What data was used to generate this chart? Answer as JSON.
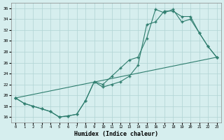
{
  "xlabel": "Humidex (Indice chaleur)",
  "ylabel": "",
  "background_color": "#d6eeee",
  "grid_color": "#b0d4d4",
  "line_color": "#2e7d6e",
  "xlim": [
    -0.5,
    23.5
  ],
  "ylim": [
    15,
    37
  ],
  "yticks": [
    16,
    18,
    20,
    22,
    24,
    26,
    28,
    30,
    32,
    34,
    36
  ],
  "xticks": [
    0,
    1,
    2,
    3,
    4,
    5,
    6,
    7,
    8,
    9,
    10,
    11,
    12,
    13,
    14,
    15,
    16,
    17,
    18,
    19,
    20,
    21,
    22,
    23
  ],
  "line1_x": [
    0,
    1,
    2,
    3,
    4,
    5,
    6,
    7,
    8,
    9,
    10,
    11,
    12,
    13,
    14,
    15,
    16,
    17,
    18,
    19,
    20,
    21,
    22,
    23
  ],
  "line1_y": [
    19.5,
    18.5,
    18.0,
    17.5,
    17.0,
    16.0,
    16.2,
    16.5,
    19.0,
    22.5,
    21.5,
    22.0,
    22.5,
    23.5,
    25.5,
    33.0,
    33.5,
    35.5,
    35.5,
    34.5,
    34.5,
    31.5,
    29.0,
    27.0
  ],
  "line2_x": [
    0,
    1,
    2,
    3,
    4,
    5,
    6,
    7,
    8,
    9,
    10,
    11,
    12,
    13,
    14,
    15,
    16,
    17,
    18,
    19,
    20,
    21,
    22,
    23
  ],
  "line2_y": [
    19.5,
    18.5,
    18.0,
    17.5,
    17.0,
    16.0,
    16.2,
    16.5,
    19.0,
    22.5,
    22.0,
    23.5,
    25.0,
    26.5,
    27.0,
    30.5,
    35.8,
    35.2,
    35.8,
    33.5,
    34.0,
    31.5,
    29.0,
    27.0
  ],
  "line3_x": [
    0,
    23
  ],
  "line3_y": [
    19.5,
    27.0
  ]
}
